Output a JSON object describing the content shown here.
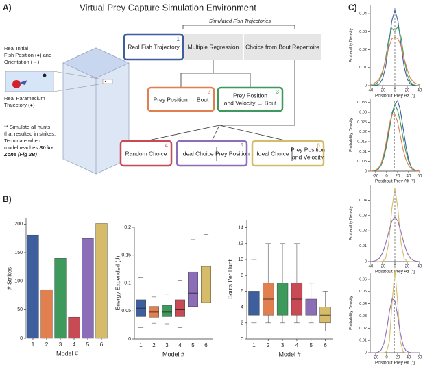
{
  "panel_labels": [
    "A)",
    "B)",
    "C)"
  ],
  "diagram": {
    "title": "Virtual Prey Capture Simulation Environment",
    "fish_label": [
      "Real Initial",
      "Fish Position (●) and",
      "Orientation (→)"
    ],
    "paramecium_label": [
      "Real Paramecium",
      "Trajectory (●)"
    ],
    "note_lines": [
      "** Simulate all hunts",
      "that resulted in strikes.",
      "Terminate when",
      "model reaches"
    ],
    "note_emphasis": [
      "Strike",
      "Zone"
    ],
    "note_end": "(Fig 2B)",
    "group_label": "Simulated Fish Trajectories",
    "boxes": [
      {
        "lines": [
          "Real Fish Trajectory"
        ],
        "number": "1"
      },
      {
        "lines": [
          "Multiple Regression"
        ]
      },
      {
        "lines": [
          "Choice from Bout Repertoire"
        ]
      },
      {
        "lines": [
          "Prey Position → Bout"
        ],
        "number": "2"
      },
      {
        "lines": [
          "Prey Position",
          "and Velocity → Bout"
        ],
        "number": "3"
      },
      {
        "lines": [
          "Random Choice"
        ],
        "number": "4"
      },
      {
        "lead": "Ideal Choice",
        "lines": [
          "Prey Position"
        ],
        "number": "5"
      },
      {
        "lead": "Ideal Choice",
        "lines": [
          "Prey Position",
          "and Velocity"
        ],
        "number": "6"
      }
    ]
  },
  "chart_data": [
    {
      "type": "bar",
      "categories": [
        "1",
        "2",
        "3",
        "4",
        "5",
        "6"
      ],
      "values": [
        181,
        85,
        140,
        37,
        175,
        201
      ],
      "colors": [
        "#3d5f9e",
        "#e17f4f",
        "#3e9a5c",
        "#c84a55",
        "#8b6db8",
        "#d6bb68"
      ],
      "ylim": [
        0,
        210
      ],
      "yticks": [
        0,
        50,
        100,
        150,
        200
      ],
      "xlabel": "Model #",
      "ylabel": "# Strikes"
    },
    {
      "type": "box",
      "categories": [
        "1",
        "2",
        "3",
        "4",
        "5",
        "6"
      ],
      "boxes": [
        {
          "color": "#3d5f9e",
          "values": [
            0.02,
            0.04,
            0.055,
            0.07,
            0.11
          ]
        },
        {
          "color": "#e17f4f",
          "values": [
            0.028,
            0.039,
            0.048,
            0.058,
            0.075
          ]
        },
        {
          "color": "#3e9a5c",
          "values": [
            0.027,
            0.04,
            0.048,
            0.06,
            0.08
          ]
        },
        {
          "color": "#c84a55",
          "values": [
            0.02,
            0.04,
            0.052,
            0.07,
            0.105
          ]
        },
        {
          "color": "#8b6db8",
          "values": [
            0.03,
            0.058,
            0.082,
            0.12,
            0.178
          ]
        },
        {
          "color": "#d6bb68",
          "values": [
            0.03,
            0.065,
            0.1,
            0.13,
            0.187
          ]
        }
      ],
      "ylim": [
        0,
        0.2
      ],
      "yticks": [
        0,
        0.05,
        0.1,
        0.15,
        0.2
      ],
      "xlabel": "Model #",
      "ylabel": "Energy Expended (J)"
    },
    {
      "type": "box",
      "categories": [
        "1",
        "2",
        "3",
        "4",
        "5",
        "6"
      ],
      "boxes": [
        {
          "color": "#3d5f9e",
          "values": [
            2,
            3,
            4,
            6,
            10
          ]
        },
        {
          "color": "#e17f4f",
          "values": [
            2,
            3,
            5,
            7,
            12
          ]
        },
        {
          "color": "#3e9a5c",
          "values": [
            2,
            3,
            4,
            7,
            12
          ]
        },
        {
          "color": "#c84a55",
          "values": [
            2,
            3,
            5,
            7,
            12
          ]
        },
        {
          "color": "#8b6db8",
          "values": [
            2,
            3,
            4,
            5,
            7
          ]
        },
        {
          "color": "#d6bb68",
          "values": [
            1,
            2,
            3,
            4,
            6
          ]
        }
      ],
      "ylim": [
        0,
        15
      ],
      "yticks": [
        0,
        2,
        4,
        6,
        8,
        10,
        12,
        14
      ],
      "xlabel": "Model #",
      "ylabel": "Bouts Per Hunt"
    },
    {
      "type": "line",
      "x": [
        -40,
        -35,
        -30,
        -25,
        -20,
        -15,
        -10,
        -5,
        0,
        5,
        10,
        15,
        20,
        25,
        30,
        35,
        40
      ],
      "series": [
        {
          "color": "#3d5f9e",
          "values": [
            0,
            0,
            0.0002,
            0.0009,
            0.0036,
            0.0105,
            0.0226,
            0.036,
            0.042,
            0.036,
            0.0226,
            0.0105,
            0.0036,
            0.0009,
            0.0002,
            0,
            0
          ]
        },
        {
          "color": "#3e9a5c",
          "values": [
            0,
            0.0003,
            0.001,
            0.003,
            0.007,
            0.015,
            0.026,
            0.032,
            0.03,
            0.033,
            0.027,
            0.015,
            0.006,
            0.002,
            0.0005,
            0.0001,
            0
          ]
        },
        {
          "color": "#e17f4f",
          "values": [
            0.0005,
            0.001,
            0.002,
            0.004,
            0.008,
            0.014,
            0.021,
            0.026,
            0.027,
            0.026,
            0.022,
            0.015,
            0.009,
            0.004,
            0.002,
            0.001,
            0.0005
          ]
        }
      ],
      "ref_x": 0,
      "xlim": [
        -40,
        40
      ],
      "xticks": [
        -40,
        -20,
        0,
        20,
        40
      ],
      "ylim": [
        0,
        0.045
      ],
      "yticks": [
        0,
        0.01,
        0.02,
        0.03,
        0.04
      ],
      "xlabel": "Postbout Prey Az [°]",
      "ylabel": "Probability Density"
    },
    {
      "type": "line",
      "x": [
        -30,
        -25,
        -20,
        -15,
        -10,
        -5,
        0,
        5,
        10,
        15,
        20,
        25,
        30,
        35,
        40,
        45,
        50,
        55,
        60
      ],
      "series": [
        {
          "color": "#3d5f9e",
          "values": [
            0,
            0,
            0.0002,
            0.001,
            0.003,
            0.008,
            0.015,
            0.022,
            0.029,
            0.034,
            0.036,
            0.031,
            0.022,
            0.013,
            0.006,
            0.002,
            0.0007,
            0.0002,
            0
          ]
        },
        {
          "color": "#3e9a5c",
          "values": [
            0,
            0,
            0.0003,
            0.0012,
            0.003,
            0.007,
            0.013,
            0.021,
            0.03,
            0.034,
            0.031,
            0.025,
            0.017,
            0.01,
            0.005,
            0.002,
            0.0008,
            0.0002,
            0
          ]
        },
        {
          "color": "#e17f4f",
          "values": [
            0,
            0.0002,
            0.0006,
            0.0015,
            0.004,
            0.009,
            0.016,
            0.024,
            0.029,
            0.029,
            0.025,
            0.018,
            0.011,
            0.006,
            0.003,
            0.0012,
            0.0004,
            0.0001,
            0
          ]
        }
      ],
      "ref_x": 14,
      "xlim": [
        -30,
        60
      ],
      "xticks": [
        -20,
        0,
        20,
        40,
        60
      ],
      "ylim": [
        0,
        0.037
      ],
      "yticks": [
        0,
        0.005,
        0.01,
        0.015,
        0.02,
        0.025,
        0.03,
        0.035
      ],
      "xlabel": "Postbout Prey Alt [°]",
      "ylabel": "Probability Density"
    },
    {
      "type": "line",
      "x": [
        -40,
        -35,
        -30,
        -25,
        -20,
        -15,
        -10,
        -5,
        0,
        5,
        10,
        15,
        20,
        25,
        30,
        35,
        40
      ],
      "series": [
        {
          "color": "#d6bb68",
          "values": [
            0,
            0,
            0,
            0,
            0.0002,
            0.002,
            0.012,
            0.034,
            0.048,
            0.034,
            0.012,
            0.002,
            0.0002,
            0,
            0,
            0,
            0
          ]
        },
        {
          "color": "#8b6db8",
          "values": [
            0,
            0.0002,
            0.0007,
            0.0022,
            0.0056,
            0.0115,
            0.0192,
            0.0262,
            0.029,
            0.0262,
            0.0192,
            0.0115,
            0.0056,
            0.0022,
            0.0007,
            0.0002,
            0
          ]
        }
      ],
      "ref_x": 0,
      "xlim": [
        -40,
        40
      ],
      "xticks": [
        -40,
        -20,
        0,
        20,
        40
      ],
      "ylim": [
        0,
        0.05
      ],
      "yticks": [
        0,
        0.01,
        0.02,
        0.03,
        0.04
      ],
      "xlabel": "Postbout Prey Az [°]",
      "ylabel": "Probability Density"
    },
    {
      "type": "line",
      "x": [
        -30,
        -25,
        -20,
        -15,
        -10,
        -5,
        0,
        5,
        10,
        15,
        20,
        25,
        30,
        35,
        40,
        45,
        50,
        55,
        60
      ],
      "series": [
        {
          "color": "#d6bb68",
          "values": [
            0,
            0,
            0,
            0,
            0,
            0,
            0.0008,
            0.0092,
            0.0413,
            0.068,
            0.0413,
            0.0092,
            0.0008,
            0,
            0,
            0,
            0,
            0,
            0
          ]
        },
        {
          "color": "#8b6db8",
          "values": [
            0,
            0,
            0,
            0.0005,
            0.0023,
            0.0076,
            0.0185,
            0.0333,
            0.0439,
            0.0426,
            0.0303,
            0.0158,
            0.0061,
            0.0017,
            0.0004,
            0,
            0,
            0,
            0
          ]
        }
      ],
      "ref_x": 14,
      "xlim": [
        -30,
        60
      ],
      "xticks": [
        -20,
        0,
        20,
        40,
        60
      ],
      "ylim": [
        0,
        0.065
      ],
      "yticks": [
        0,
        0.01,
        0.02,
        0.03,
        0.04,
        0.05,
        0.06
      ],
      "xlabel": "Postbout Prey Alt [°]",
      "ylabel": "Probability Density"
    }
  ]
}
